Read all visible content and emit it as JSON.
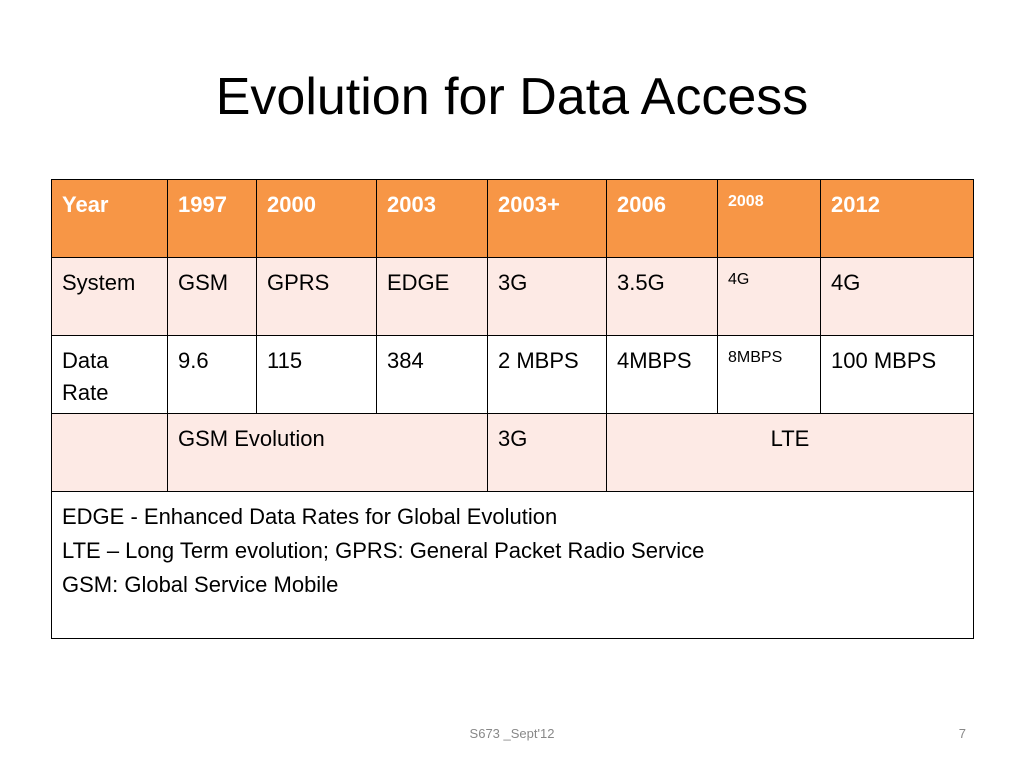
{
  "slide": {
    "title": "Evolution for Data Access",
    "footer_center": "S673 _Sept'12",
    "page_number": "7"
  },
  "table": {
    "header": [
      "Year",
      "1997",
      "2000",
      "2003",
      "2003+",
      "2006",
      "2008",
      "2012"
    ],
    "system": [
      "System",
      "GSM",
      "GPRS",
      "EDGE",
      "3G",
      "3.5G",
      "4G",
      "4G"
    ],
    "data_rate": [
      "Data Rate",
      "9.6",
      "115",
      "384",
      "2 MBPS",
      "4MBPS",
      "8MBPS",
      "100 MBPS"
    ],
    "evolution": {
      "empty": "",
      "gsm": "GSM Evolution",
      "threeg": "3G",
      "lte": "LTE"
    },
    "notes": [
      "EDGE  - Enhanced Data Rates for Global Evolution",
      "LTE – Long Term evolution; GPRS: General Packet Radio Service",
      "GSM: Global Service Mobile"
    ]
  },
  "colors": {
    "header_bg": "#f79646",
    "band_bg": "#fdeae5",
    "border": "#000000"
  }
}
